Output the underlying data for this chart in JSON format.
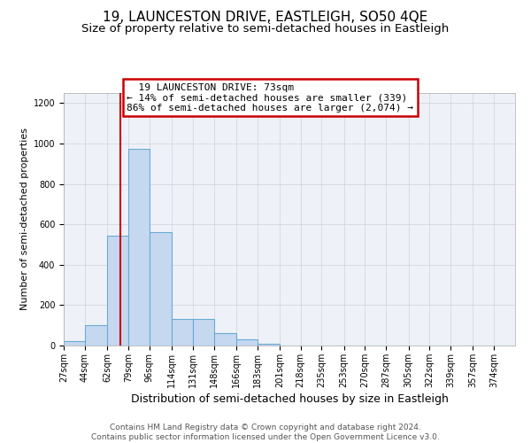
{
  "title": "19, LAUNCESTON DRIVE, EASTLEIGH, SO50 4QE",
  "subtitle": "Size of property relative to semi-detached houses in Eastleigh",
  "xlabel": "Distribution of semi-detached houses by size in Eastleigh",
  "ylabel": "Number of semi-detached properties",
  "bin_labels": [
    "27sqm",
    "44sqm",
    "62sqm",
    "79sqm",
    "96sqm",
    "114sqm",
    "131sqm",
    "148sqm",
    "166sqm",
    "183sqm",
    "201sqm",
    "218sqm",
    "235sqm",
    "253sqm",
    "270sqm",
    "287sqm",
    "305sqm",
    "322sqm",
    "339sqm",
    "357sqm",
    "374sqm"
  ],
  "bin_edges": [
    27,
    44,
    62,
    79,
    96,
    114,
    131,
    148,
    166,
    183,
    201,
    218,
    235,
    253,
    270,
    287,
    305,
    322,
    339,
    357,
    374,
    391
  ],
  "bar_heights": [
    20,
    100,
    545,
    975,
    560,
    130,
    130,
    60,
    30,
    10,
    0,
    0,
    0,
    0,
    0,
    0,
    0,
    0,
    0,
    0,
    0
  ],
  "bar_color": "#c5d8f0",
  "bar_edge_color": "#6aaad4",
  "property_size": 73,
  "property_line_color": "#cc0000",
  "annotation_text": "  19 LAUNCESTON DRIVE: 73sqm  \n← 14% of semi-detached houses are smaller (339)\n86% of semi-detached houses are larger (2,074) →",
  "annotation_box_color": "#cc0000",
  "ylim": [
    0,
    1250
  ],
  "yticks": [
    0,
    200,
    400,
    600,
    800,
    1000,
    1200
  ],
  "grid_color": "#d0d0d8",
  "background_color": "#ffffff",
  "plot_bg_color": "#eef2f8",
  "footer_text": "Contains HM Land Registry data © Crown copyright and database right 2024.\nContains public sector information licensed under the Open Government Licence v3.0.",
  "title_fontsize": 11,
  "subtitle_fontsize": 9.5,
  "xlabel_fontsize": 9,
  "ylabel_fontsize": 8,
  "tick_fontsize": 7,
  "annotation_fontsize": 8,
  "footer_fontsize": 6.5
}
